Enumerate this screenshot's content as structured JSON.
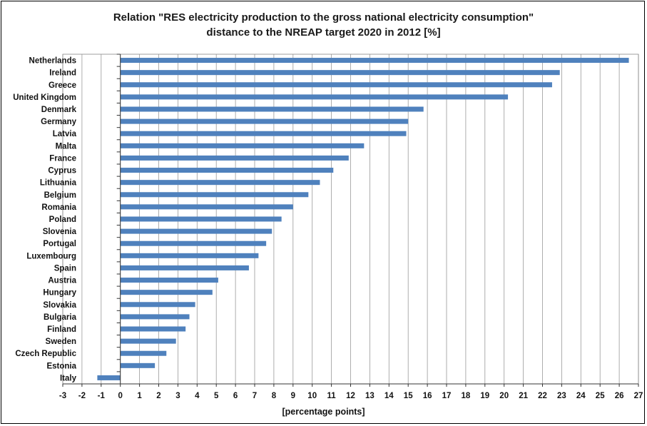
{
  "chart_data": {
    "type": "bar",
    "orientation": "horizontal",
    "title_line1": "Relation \"RES electricity production to the gross national electricity consumption\"",
    "title_line2": "distance to the NREAP target 2020 in 2012 [%]",
    "xlabel": "[percentage points]",
    "ylabel": "",
    "xlim": [
      -3,
      27
    ],
    "x_ticks": [
      -3,
      -2,
      -1,
      0,
      1,
      2,
      3,
      4,
      5,
      6,
      7,
      8,
      9,
      10,
      11,
      12,
      13,
      14,
      15,
      16,
      17,
      18,
      19,
      20,
      21,
      22,
      23,
      24,
      25,
      26,
      27
    ],
    "grid": "vertical",
    "bar_color": "#4f81bd",
    "categories": [
      "Netherlands",
      "Ireland",
      "Greece",
      "United Kingdom",
      "Denmark",
      "Germany",
      "Latvia",
      "Malta",
      "France",
      "Cyprus",
      "Lithuania",
      "Belgium",
      "Romania",
      "Poland",
      "Slovenia",
      "Portugal",
      "Luxembourg",
      "Spain",
      "Austria",
      "Hungary",
      "Slovakia",
      "Bulgaria",
      "Finland",
      "Sweden",
      "Czech Republic",
      "Estonia",
      "Italy"
    ],
    "values": [
      26.5,
      22.9,
      22.5,
      20.2,
      15.8,
      15.0,
      14.9,
      12.7,
      11.9,
      11.1,
      10.4,
      9.8,
      9.0,
      8.4,
      7.9,
      7.6,
      7.2,
      6.7,
      5.1,
      4.8,
      3.9,
      3.6,
      3.4,
      2.9,
      2.4,
      1.8,
      -1.2
    ]
  }
}
